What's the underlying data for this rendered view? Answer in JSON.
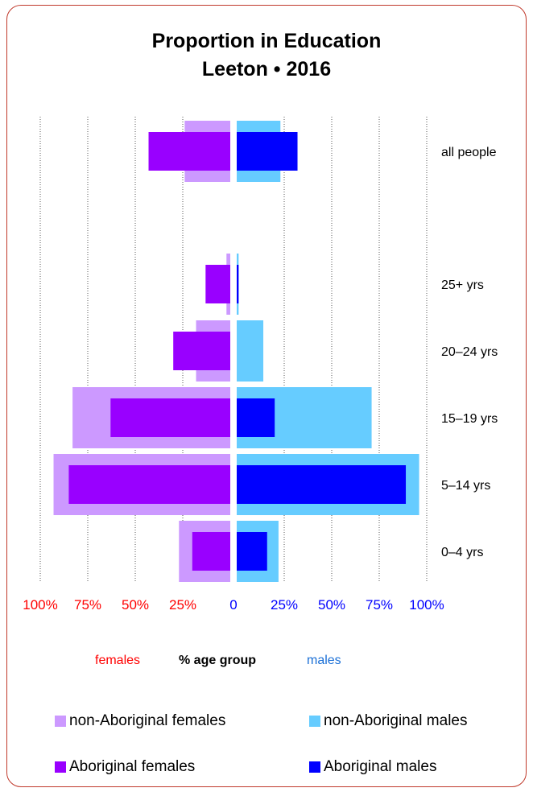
{
  "title_line1": "Proportion in Education",
  "title_line2": "Leeton • 2016",
  "footer": {
    "females": "females",
    "center": "% age group",
    "males": "males"
  },
  "legend": [
    {
      "label": "non-Aboriginal females",
      "color": "#cc99ff"
    },
    {
      "label": "non-Aboriginal males",
      "color": "#66ccff"
    },
    {
      "label": "Aboriginal females",
      "color": "#9900ff"
    },
    {
      "label": "Aboriginal males",
      "color": "#0000ff"
    }
  ],
  "colors": {
    "female_axis": "#ff0000",
    "male_axis": "#0000ff",
    "males_footer": "#1a6fd6",
    "border": "#c0392b"
  },
  "chart_data": {
    "type": "bar",
    "orientation": "horizontal-diverging",
    "categories": [
      "all people",
      "25+ yrs",
      "20–24 yrs",
      "15–19 yrs",
      "5–14 yrs",
      "0–4 yrs"
    ],
    "series": [
      {
        "name": "non-Aboriginal females",
        "side": "left",
        "values": [
          24,
          2,
          18,
          83,
          93,
          27
        ]
      },
      {
        "name": "Aboriginal females",
        "side": "left",
        "values": [
          43,
          13,
          30,
          63,
          85,
          20
        ]
      },
      {
        "name": "non-Aboriginal males",
        "side": "right",
        "values": [
          23,
          1,
          14,
          71,
          96,
          22
        ]
      },
      {
        "name": "Aboriginal males",
        "side": "right",
        "values": [
          32,
          1,
          0,
          20,
          89,
          16
        ]
      }
    ],
    "left_ticks": [
      "100%",
      "75%",
      "50%",
      "25%",
      "0"
    ],
    "right_ticks": [
      "25%",
      "50%",
      "75%",
      "100%"
    ],
    "xlim": [
      0,
      100
    ],
    "grid": true
  }
}
